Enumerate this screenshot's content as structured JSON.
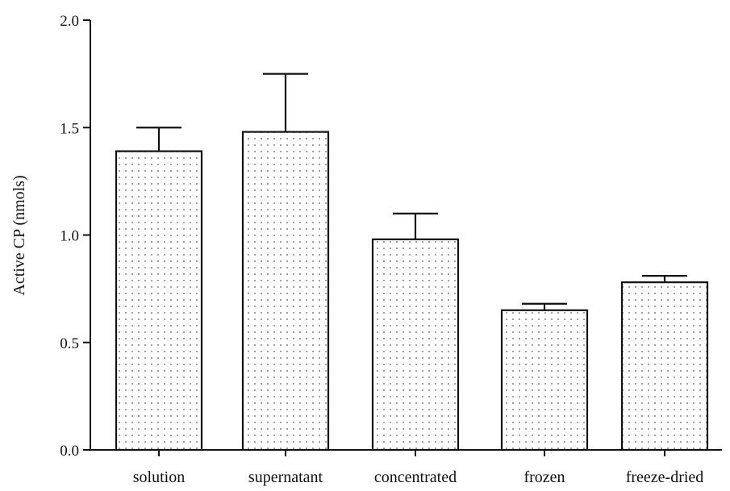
{
  "chart_data": {
    "type": "bar",
    "title": "",
    "xlabel": "",
    "ylabel": "Active CP (nmols)",
    "ylim": [
      0,
      2.0
    ],
    "yticks": [
      0.0,
      0.5,
      1.0,
      1.5,
      2.0
    ],
    "ytick_labels": [
      "0.0",
      "0.5",
      "1.0",
      "1.5",
      "2.0"
    ],
    "categories": [
      "solution",
      "supernatant",
      "concentrated",
      "frozen",
      "freeze-dried"
    ],
    "values": [
      1.39,
      1.48,
      0.98,
      0.65,
      0.78
    ],
    "error_upper": [
      0.11,
      0.27,
      0.12,
      0.03,
      0.03
    ],
    "bar_fill": "dotted",
    "bar_color": "#ffffff",
    "dot_color": "#9a9a9a",
    "edge_color": "#111111",
    "grid": false,
    "legend": "none"
  }
}
